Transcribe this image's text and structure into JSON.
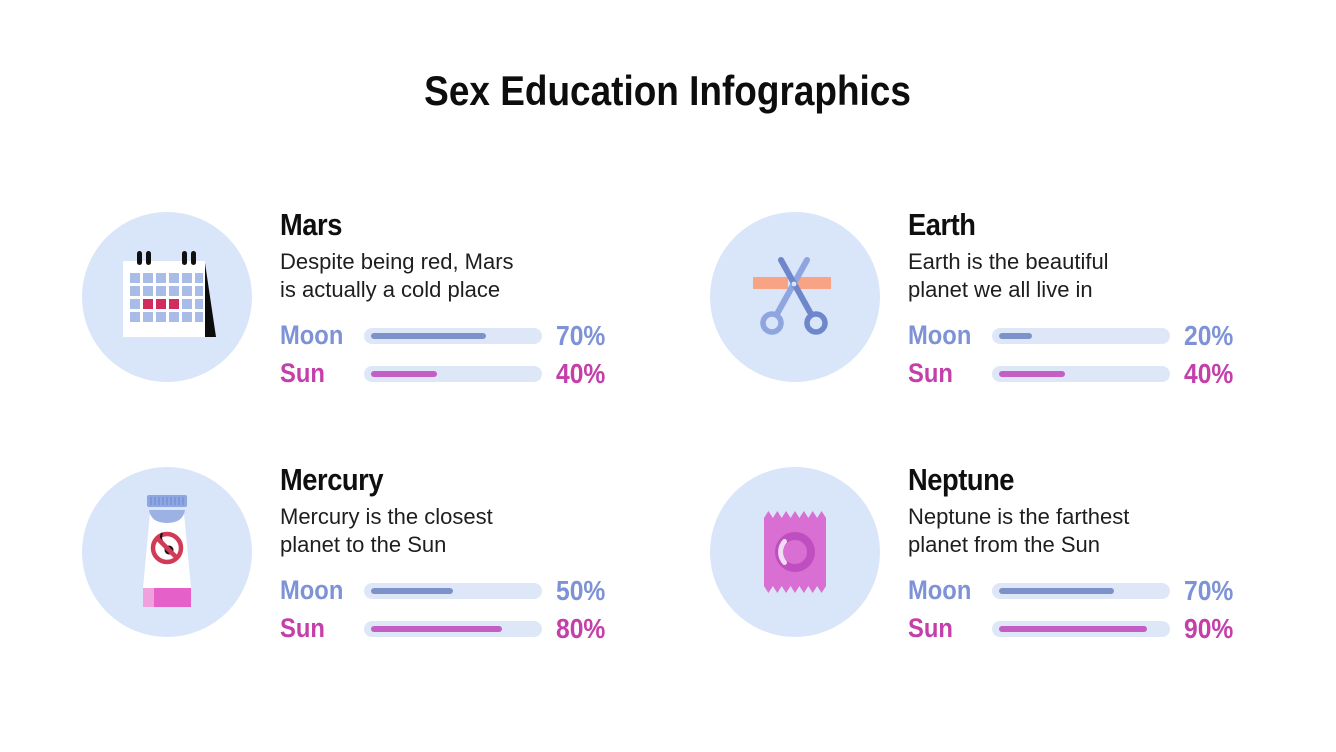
{
  "page": {
    "title": "Sex Education Infographics"
  },
  "bar_labels": {
    "moon": "Moon",
    "sun": "Sun"
  },
  "colors": {
    "background": "#ffffff",
    "title_text": "#0d0d0d",
    "body_text": "#1e1e1e",
    "icon_circle_bg": "#d9e5f9",
    "bar_track": "#dde7f8",
    "moon_text": "#7e93d6",
    "moon_fill": "#7d92c8",
    "sun_text": "#c33fa9",
    "sun_fill": "#c45ec4",
    "ribbon_orange": "#f7a384",
    "calendar_square_blue": "#a9bce8",
    "calendar_square_red": "#d02c5e",
    "condom_pink": "#d96fd2",
    "tube_cap_blue": "#8fa7e0",
    "prohibition_red": "#d23b55"
  },
  "chart_data": {
    "type": "bar",
    "series_labels": [
      "Moon",
      "Sun"
    ],
    "groups": [
      {
        "name": "Mars",
        "moon": 70,
        "sun": 40
      },
      {
        "name": "Earth",
        "moon": 20,
        "sun": 40
      },
      {
        "name": "Mercury",
        "moon": 50,
        "sun": 80
      },
      {
        "name": "Neptune",
        "moon": 70,
        "sun": 90
      }
    ],
    "unit": "%",
    "xlim": [
      0,
      100
    ]
  },
  "cards": [
    {
      "title": "Mars",
      "icon": "calendar-icon",
      "description": "Despite being red, Mars\nis actually a cold place",
      "moon_value": 70,
      "moon_display": "70%",
      "sun_value": 40,
      "sun_display": "40%"
    },
    {
      "title": "Earth",
      "icon": "scissors-icon",
      "description": "Earth is the beautiful\nplanet we all live in",
      "moon_value": 20,
      "moon_display": "20%",
      "sun_value": 40,
      "sun_display": "40%"
    },
    {
      "title": "Mercury",
      "icon": "spermicide-tube-icon",
      "description": "Mercury is the closest\nplanet to the Sun",
      "moon_value": 50,
      "moon_display": "50%",
      "sun_value": 80,
      "sun_display": "80%"
    },
    {
      "title": "Neptune",
      "icon": "condom-icon",
      "description": "Neptune is the farthest\nplanet from the Sun",
      "moon_value": 70,
      "moon_display": "70%",
      "sun_value": 90,
      "sun_display": "90%"
    }
  ]
}
